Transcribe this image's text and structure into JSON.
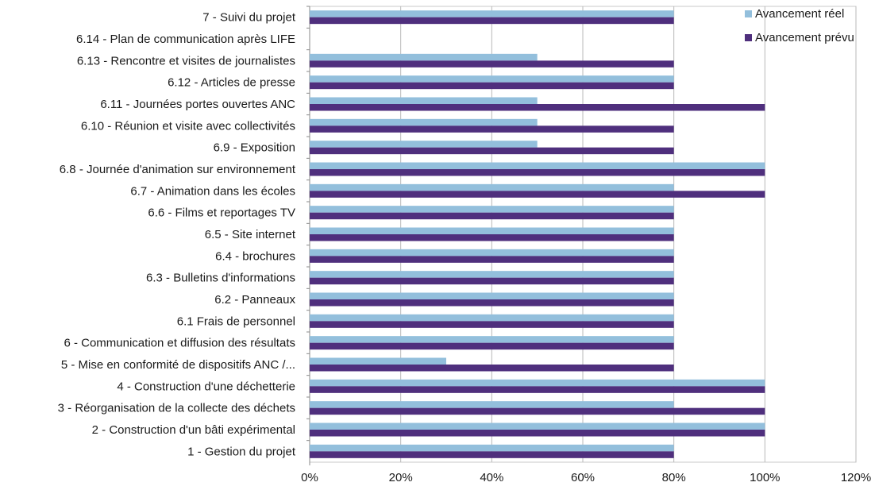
{
  "chart_data": {
    "type": "bar",
    "orientation": "horizontal",
    "categories": [
      "7 - Suivi du projet",
      "6.14 - Plan de communication après LIFE",
      "6.13 - Rencontre et visites de journalistes",
      "6.12 - Articles de presse",
      "6.11 - Journées portes ouvertes ANC",
      "6.10 - Réunion et visite avec collectivités",
      "6.9 - Exposition",
      "6.8 - Journée d'animation sur environnement",
      "6.7 - Animation dans les écoles",
      "6.6 - Films et reportages TV",
      "6.5 - Site internet",
      "6.4 - brochures",
      "6.3 - Bulletins d'informations",
      "6.2 - Panneaux",
      "6.1 Frais de personnel",
      "6 - Communication et diffusion des résultats",
      "5 -  Mise en conformité de dispositifs ANC /...",
      "4 - Construction d'une déchetterie",
      "3 - Réorganisation de la collecte des déchets",
      "2 - Construction d'un bâti expérimental",
      "1 - Gestion du projet"
    ],
    "series": [
      {
        "name": "Avancement réel",
        "color": "#93bfdc",
        "values": [
          80,
          0,
          50,
          80,
          50,
          50,
          50,
          100,
          80,
          80,
          80,
          80,
          80,
          80,
          80,
          80,
          30,
          100,
          80,
          100,
          80
        ]
      },
      {
        "name": "Avancement prévu",
        "color": "#4f2f7d",
        "values": [
          80,
          0,
          80,
          80,
          100,
          80,
          80,
          100,
          100,
          80,
          80,
          80,
          80,
          80,
          80,
          80,
          80,
          100,
          100,
          100,
          80
        ]
      }
    ],
    "xlim": [
      0,
      120
    ],
    "x_ticks": [
      "0%",
      "20%",
      "40%",
      "60%",
      "80%",
      "100%",
      "120%"
    ],
    "x_tick_values": [
      0,
      20,
      40,
      60,
      80,
      100,
      120
    ],
    "grid": true,
    "legend_position": "top-right"
  }
}
